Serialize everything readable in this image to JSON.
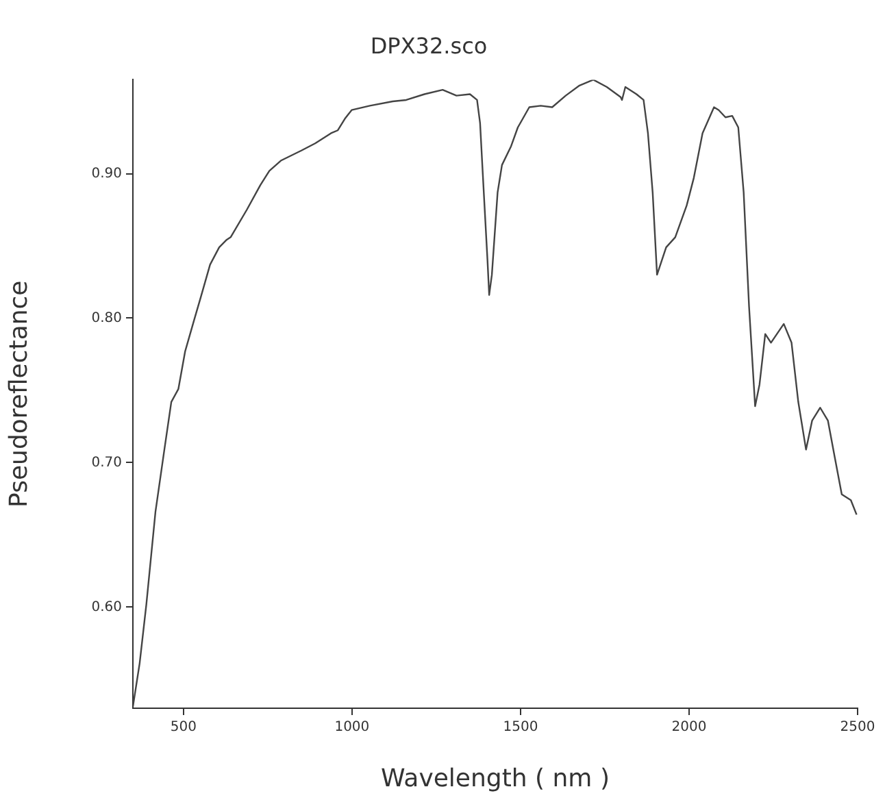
{
  "chart_data": {
    "type": "line",
    "title": "DPX32.sco",
    "xlabel": "Wavelength ( nm )",
    "ylabel": "Pseudoreflectance",
    "x": [
      350,
      370,
      390,
      417,
      444,
      464,
      485,
      505,
      532,
      552,
      579,
      606,
      627,
      640,
      688,
      728,
      755,
      789,
      850,
      891,
      938,
      958,
      979,
      999,
      1053,
      1121,
      1161,
      1215,
      1269,
      1310,
      1350,
      1371,
      1380,
      1391,
      1402,
      1407,
      1415,
      1432,
      1445,
      1472,
      1492,
      1526,
      1560,
      1594,
      1634,
      1675,
      1716,
      1756,
      1797,
      1801,
      1811,
      1844,
      1865,
      1878,
      1892,
      1905,
      1932,
      1959,
      1993,
      2014,
      2040,
      2074,
      2088,
      2108,
      2128,
      2146,
      2162,
      2178,
      2196,
      2209,
      2226,
      2243,
      2281,
      2304,
      2324,
      2347,
      2365,
      2389,
      2412,
      2432,
      2453,
      2480,
      2497
    ],
    "series": [
      {
        "color": "#444444",
        "values": [
          0.531,
          0.561,
          0.602,
          0.666,
          0.71,
          0.742,
          0.751,
          0.777,
          0.799,
          0.815,
          0.837,
          0.849,
          0.854,
          0.856,
          0.875,
          0.892,
          0.902,
          0.909,
          0.916,
          0.921,
          0.928,
          0.93,
          0.938,
          0.944,
          0.947,
          0.95,
          0.951,
          0.955,
          0.958,
          0.954,
          0.955,
          0.951,
          0.935,
          0.887,
          0.84,
          0.816,
          0.83,
          0.887,
          0.906,
          0.919,
          0.932,
          0.946,
          0.947,
          0.946,
          0.954,
          0.961,
          0.965,
          0.96,
          0.953,
          0.951,
          0.96,
          0.955,
          0.951,
          0.928,
          0.887,
          0.83,
          0.849,
          0.856,
          0.878,
          0.897,
          0.928,
          0.946,
          0.944,
          0.939,
          0.94,
          0.932,
          0.887,
          0.808,
          0.739,
          0.754,
          0.789,
          0.783,
          0.796,
          0.783,
          0.742,
          0.709,
          0.729,
          0.738,
          0.729,
          0.704,
          0.678,
          0.674,
          0.664
        ]
      }
    ],
    "xlim": [
      350,
      2500
    ],
    "xticks": [
      500,
      1000,
      1500,
      2000,
      2500
    ],
    "ylim": [
      0.53,
      0.965
    ],
    "yticks": [
      {
        "value": 0.6,
        "label": "0.60"
      },
      {
        "value": 0.7,
        "label": "0.70"
      },
      {
        "value": 0.8,
        "label": "0.80"
      },
      {
        "value": 0.9,
        "label": "0.90"
      }
    ],
    "grid": false,
    "legend": false,
    "marker": "none",
    "line_style": "solid"
  }
}
